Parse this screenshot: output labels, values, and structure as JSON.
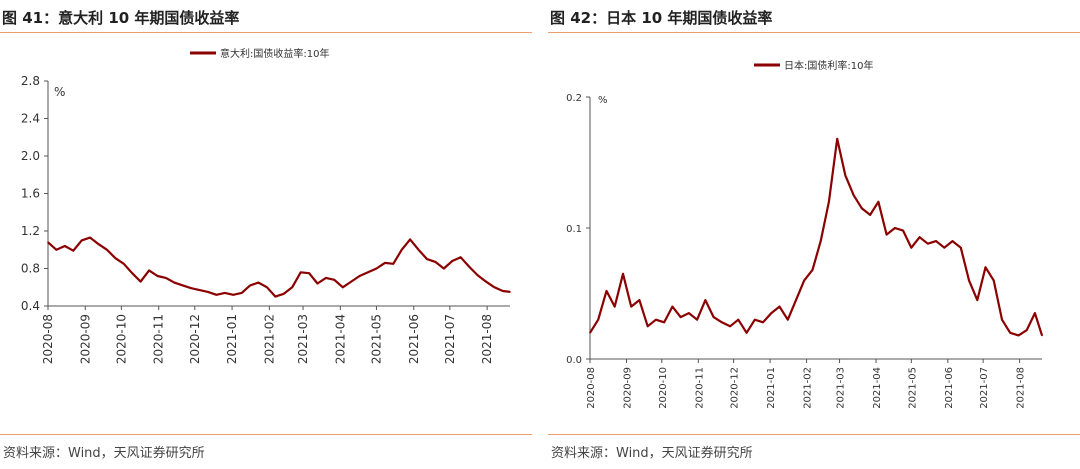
{
  "panels": [
    {
      "title": "图 41：意大利 10 年期国债收益率",
      "source": "资料来源：Wind，天风证券研究所"
    },
    {
      "title": "图 42：日本 10 年期国债收益率",
      "source": "资料来源：Wind，天风证券研究所"
    }
  ],
  "chart_data": [
    {
      "type": "line",
      "title": "图 41：意大利 10 年期国债收益率",
      "ylabel": "%",
      "ylim": [
        0.4,
        2.8
      ],
      "yticks": [
        "0.4",
        "0.8",
        "1.2",
        "1.6",
        "2.0",
        "2.4",
        "2.8"
      ],
      "yticks_values": [
        0.4,
        0.8,
        1.2,
        1.6,
        2.0,
        2.4,
        2.8
      ],
      "xticks": [
        "2020-08",
        "2020-09",
        "2020-10",
        "2020-11",
        "2020-12",
        "2021-01",
        "2021-02",
        "2021-03",
        "2021-04",
        "2021-05",
        "2021-06",
        "2021-07",
        "2021-08"
      ],
      "x_range": [
        "2020-08-01",
        "2021-08-20"
      ],
      "legend": "top-center",
      "color": "#8b0000",
      "series": [
        {
          "name": "意大利:国债收益率:10年",
          "x": [
            "2020-08-01",
            "2020-08-08",
            "2020-08-15",
            "2020-08-22",
            "2020-08-29",
            "2020-09-05",
            "2020-09-12",
            "2020-09-19",
            "2020-09-26",
            "2020-10-03",
            "2020-10-10",
            "2020-10-17",
            "2020-10-24",
            "2020-10-31",
            "2020-11-07",
            "2020-11-14",
            "2020-11-21",
            "2020-11-28",
            "2020-12-05",
            "2020-12-12",
            "2020-12-19",
            "2020-12-26",
            "2021-01-02",
            "2021-01-09",
            "2021-01-16",
            "2021-01-23",
            "2021-01-30",
            "2021-02-06",
            "2021-02-13",
            "2021-02-20",
            "2021-02-27",
            "2021-03-06",
            "2021-03-13",
            "2021-03-20",
            "2021-03-27",
            "2021-04-03",
            "2021-04-10",
            "2021-04-17",
            "2021-04-24",
            "2021-05-01",
            "2021-05-08",
            "2021-05-15",
            "2021-05-22",
            "2021-05-29",
            "2021-06-05",
            "2021-06-12",
            "2021-06-19",
            "2021-06-26",
            "2021-07-03",
            "2021-07-10",
            "2021-07-17",
            "2021-07-24",
            "2021-07-31",
            "2021-08-07",
            "2021-08-14",
            "2021-08-20"
          ],
          "values": [
            1.08,
            1.0,
            1.04,
            0.99,
            1.1,
            1.13,
            1.06,
            1.0,
            0.91,
            0.85,
            0.75,
            0.66,
            0.78,
            0.72,
            0.7,
            0.65,
            0.62,
            0.59,
            0.57,
            0.55,
            0.52,
            0.54,
            0.52,
            0.54,
            0.62,
            0.65,
            0.6,
            0.5,
            0.53,
            0.6,
            0.76,
            0.75,
            0.64,
            0.7,
            0.68,
            0.6,
            0.66,
            0.72,
            0.76,
            0.8,
            0.86,
            0.85,
            1.0,
            1.11,
            1.0,
            0.9,
            0.87,
            0.8,
            0.88,
            0.92,
            0.82,
            0.73,
            0.66,
            0.6,
            0.56,
            0.55
          ]
        }
      ]
    },
    {
      "type": "line",
      "title": "图 42：日本 10 年期国债收益率",
      "ylabel": "%",
      "ylim": [
        0.0,
        0.2
      ],
      "yticks": [
        "0.0",
        "0.1",
        "0.2"
      ],
      "yticks_values": [
        0.0,
        0.1,
        0.2
      ],
      "xticks": [
        "2020-08",
        "2020-09",
        "2020-10",
        "2020-11",
        "2020-12",
        "2021-01",
        "2021-02",
        "2021-03",
        "2021-04",
        "2021-05",
        "2021-06",
        "2021-07",
        "2021-08"
      ],
      "x_range": [
        "2020-08-01",
        "2021-08-20"
      ],
      "legend": "top-center",
      "color": "#8b0000",
      "series": [
        {
          "name": "日本:国债利率:10年",
          "x": [
            "2020-08-01",
            "2020-08-08",
            "2020-08-15",
            "2020-08-22",
            "2020-08-29",
            "2020-09-05",
            "2020-09-12",
            "2020-09-19",
            "2020-09-26",
            "2020-10-03",
            "2020-10-10",
            "2020-10-17",
            "2020-10-24",
            "2020-10-31",
            "2020-11-07",
            "2020-11-14",
            "2020-11-21",
            "2020-11-28",
            "2020-12-05",
            "2020-12-12",
            "2020-12-19",
            "2020-12-26",
            "2021-01-02",
            "2021-01-09",
            "2021-01-16",
            "2021-01-23",
            "2021-01-30",
            "2021-02-06",
            "2021-02-13",
            "2021-02-20",
            "2021-02-27",
            "2021-03-06",
            "2021-03-13",
            "2021-03-20",
            "2021-03-27",
            "2021-04-03",
            "2021-04-10",
            "2021-04-17",
            "2021-04-24",
            "2021-05-01",
            "2021-05-08",
            "2021-05-15",
            "2021-05-22",
            "2021-05-29",
            "2021-06-05",
            "2021-06-12",
            "2021-06-19",
            "2021-06-26",
            "2021-07-03",
            "2021-07-10",
            "2021-07-17",
            "2021-07-24",
            "2021-07-31",
            "2021-08-07",
            "2021-08-14",
            "2021-08-20"
          ],
          "values": [
            0.02,
            0.03,
            0.052,
            0.04,
            0.065,
            0.04,
            0.045,
            0.025,
            0.03,
            0.028,
            0.04,
            0.032,
            0.035,
            0.03,
            0.045,
            0.032,
            0.028,
            0.025,
            0.03,
            0.02,
            0.03,
            0.028,
            0.035,
            0.04,
            0.03,
            0.045,
            0.06,
            0.068,
            0.09,
            0.12,
            0.168,
            0.14,
            0.125,
            0.115,
            0.11,
            0.12,
            0.095,
            0.1,
            0.098,
            0.085,
            0.093,
            0.088,
            0.09,
            0.085,
            0.09,
            0.085,
            0.06,
            0.045,
            0.07,
            0.06,
            0.03,
            0.02,
            0.018,
            0.022,
            0.035,
            0.018
          ]
        }
      ]
    }
  ]
}
